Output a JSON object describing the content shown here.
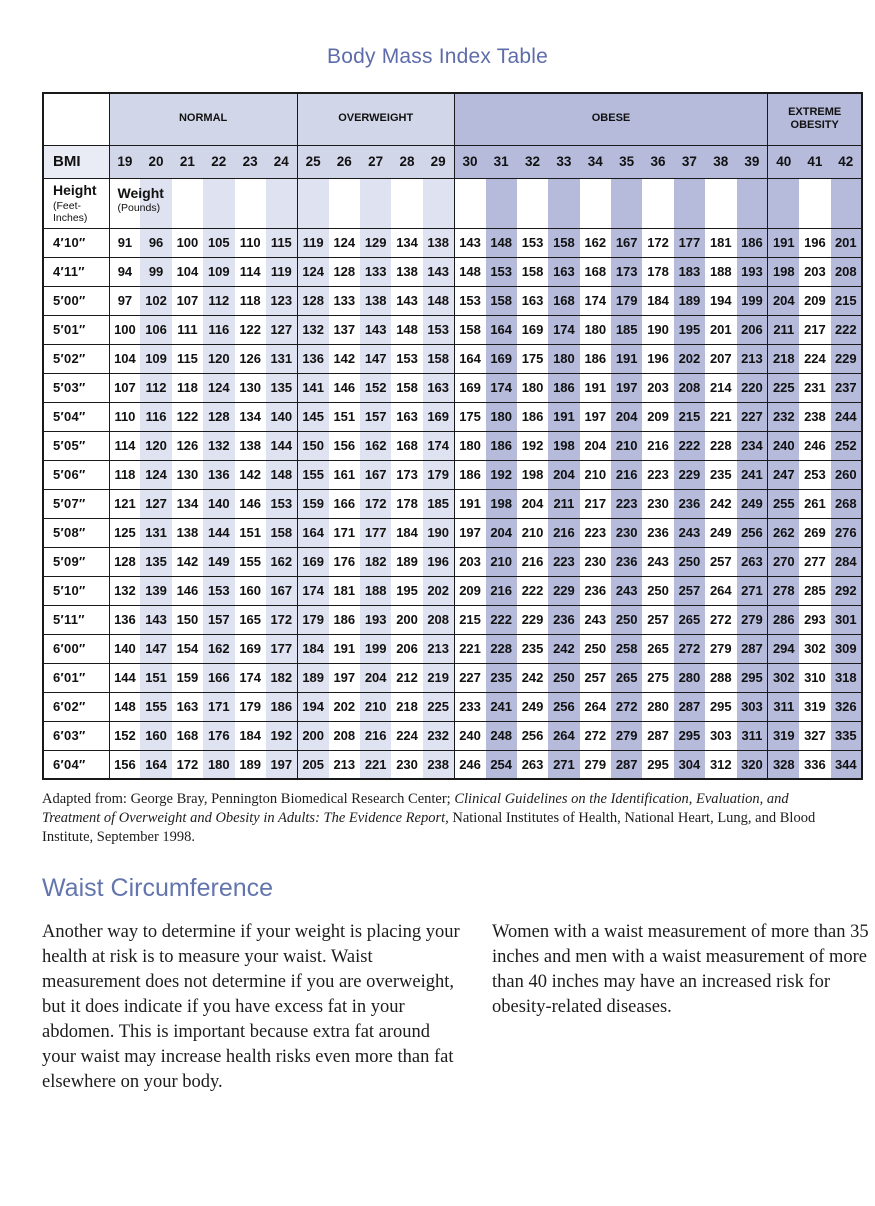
{
  "title": "Body Mass Index Table",
  "table": {
    "categories": [
      {
        "label": "NORMAL",
        "span": 6,
        "shade": "light"
      },
      {
        "label": "OVERWEIGHT",
        "span": 5,
        "shade": "light"
      },
      {
        "label": "OBESE",
        "span": 10,
        "shade": "medium"
      },
      {
        "label": "EXTREME OBESITY",
        "span": 3,
        "shade": "medium"
      }
    ],
    "bmi_label": "BMI",
    "bmi_values": [
      19,
      20,
      21,
      22,
      23,
      24,
      25,
      26,
      27,
      28,
      29,
      30,
      31,
      32,
      33,
      34,
      35,
      36,
      37,
      38,
      39,
      40,
      41,
      42
    ],
    "striped_bmi_columns": [
      20,
      22,
      24,
      25,
      27,
      29,
      31,
      33,
      35,
      37,
      39,
      40,
      42
    ],
    "height_label": "Height",
    "height_unit": "(Feet-Inches)",
    "weight_label": "Weight",
    "weight_unit": "(Pounds)",
    "rows": [
      {
        "height": "4′10″",
        "weights": [
          91,
          96,
          100,
          105,
          110,
          115,
          119,
          124,
          129,
          134,
          138,
          143,
          148,
          153,
          158,
          162,
          167,
          172,
          177,
          181,
          186,
          191,
          196,
          201
        ]
      },
      {
        "height": "4′11″",
        "weights": [
          94,
          99,
          104,
          109,
          114,
          119,
          124,
          128,
          133,
          138,
          143,
          148,
          153,
          158,
          163,
          168,
          173,
          178,
          183,
          188,
          193,
          198,
          203,
          208
        ]
      },
      {
        "height": "5′00″",
        "weights": [
          97,
          102,
          107,
          112,
          118,
          123,
          128,
          133,
          138,
          143,
          148,
          153,
          158,
          163,
          168,
          174,
          179,
          184,
          189,
          194,
          199,
          204,
          209,
          215
        ]
      },
      {
        "height": "5′01″",
        "weights": [
          100,
          106,
          111,
          116,
          122,
          127,
          132,
          137,
          143,
          148,
          153,
          158,
          164,
          169,
          174,
          180,
          185,
          190,
          195,
          201,
          206,
          211,
          217,
          222
        ]
      },
      {
        "height": "5′02″",
        "weights": [
          104,
          109,
          115,
          120,
          126,
          131,
          136,
          142,
          147,
          153,
          158,
          164,
          169,
          175,
          180,
          186,
          191,
          196,
          202,
          207,
          213,
          218,
          224,
          229
        ]
      },
      {
        "height": "5′03″",
        "weights": [
          107,
          112,
          118,
          124,
          130,
          135,
          141,
          146,
          152,
          158,
          163,
          169,
          174,
          180,
          186,
          191,
          197,
          203,
          208,
          214,
          220,
          225,
          231,
          237
        ]
      },
      {
        "height": "5′04″",
        "weights": [
          110,
          116,
          122,
          128,
          134,
          140,
          145,
          151,
          157,
          163,
          169,
          175,
          180,
          186,
          191,
          197,
          204,
          209,
          215,
          221,
          227,
          232,
          238,
          244
        ]
      },
      {
        "height": "5′05″",
        "weights": [
          114,
          120,
          126,
          132,
          138,
          144,
          150,
          156,
          162,
          168,
          174,
          180,
          186,
          192,
          198,
          204,
          210,
          216,
          222,
          228,
          234,
          240,
          246,
          252
        ]
      },
      {
        "height": "5′06″",
        "weights": [
          118,
          124,
          130,
          136,
          142,
          148,
          155,
          161,
          167,
          173,
          179,
          186,
          192,
          198,
          204,
          210,
          216,
          223,
          229,
          235,
          241,
          247,
          253,
          260
        ]
      },
      {
        "height": "5′07″",
        "weights": [
          121,
          127,
          134,
          140,
          146,
          153,
          159,
          166,
          172,
          178,
          185,
          191,
          198,
          204,
          211,
          217,
          223,
          230,
          236,
          242,
          249,
          255,
          261,
          268
        ]
      },
      {
        "height": "5′08″",
        "weights": [
          125,
          131,
          138,
          144,
          151,
          158,
          164,
          171,
          177,
          184,
          190,
          197,
          204,
          210,
          216,
          223,
          230,
          236,
          243,
          249,
          256,
          262,
          269,
          276
        ]
      },
      {
        "height": "5′09″",
        "weights": [
          128,
          135,
          142,
          149,
          155,
          162,
          169,
          176,
          182,
          189,
          196,
          203,
          210,
          216,
          223,
          230,
          236,
          243,
          250,
          257,
          263,
          270,
          277,
          284
        ]
      },
      {
        "height": "5′10″",
        "weights": [
          132,
          139,
          146,
          153,
          160,
          167,
          174,
          181,
          188,
          195,
          202,
          209,
          216,
          222,
          229,
          236,
          243,
          250,
          257,
          264,
          271,
          278,
          285,
          292
        ]
      },
      {
        "height": "5′11″",
        "weights": [
          136,
          143,
          150,
          157,
          165,
          172,
          179,
          186,
          193,
          200,
          208,
          215,
          222,
          229,
          236,
          243,
          250,
          257,
          265,
          272,
          279,
          286,
          293,
          301
        ]
      },
      {
        "height": "6′00″",
        "weights": [
          140,
          147,
          154,
          162,
          169,
          177,
          184,
          191,
          199,
          206,
          213,
          221,
          228,
          235,
          242,
          250,
          258,
          265,
          272,
          279,
          287,
          294,
          302,
          309
        ]
      },
      {
        "height": "6′01″",
        "weights": [
          144,
          151,
          159,
          166,
          174,
          182,
          189,
          197,
          204,
          212,
          219,
          227,
          235,
          242,
          250,
          257,
          265,
          275,
          280,
          288,
          295,
          302,
          310,
          318
        ]
      },
      {
        "height": "6′02″",
        "weights": [
          148,
          155,
          163,
          171,
          179,
          186,
          194,
          202,
          210,
          218,
          225,
          233,
          241,
          249,
          256,
          264,
          272,
          280,
          287,
          295,
          303,
          311,
          319,
          326
        ]
      },
      {
        "height": "6′03″",
        "weights": [
          152,
          160,
          168,
          176,
          184,
          192,
          200,
          208,
          216,
          224,
          232,
          240,
          248,
          256,
          264,
          272,
          279,
          287,
          295,
          303,
          311,
          319,
          327,
          335
        ]
      },
      {
        "height": "6′04″",
        "weights": [
          156,
          164,
          172,
          180,
          189,
          197,
          205,
          213,
          221,
          230,
          238,
          246,
          254,
          263,
          271,
          279,
          287,
          295,
          304,
          312,
          320,
          328,
          336,
          344
        ]
      }
    ]
  },
  "source_note": {
    "prefix": "Adapted from: George Bray, Pennington Biomedical Research Center; ",
    "italic": "Clinical Guidelines on the Identification, Evaluation, and Treatment of Overweight and Obesity in Adults: The Evidence Report,",
    "suffix": " National Institutes of Health, National Heart, Lung, and Blood Institute, September 1998."
  },
  "waist_section": {
    "heading": "Waist Circumference",
    "left_paragraph": "Another way to determine if your weight is placing your health at risk is to measure your waist. Waist measurement does not determine if you are overweight, but it does indicate if you have excess fat in your abdomen. This is important because extra fat around your waist may increase health risks even more than fat elsewhere on your body.",
    "right_paragraph": "Women with a waist measurement of more than 35 inches and men with a waist measurement of more than 40 inches may have an increased risk for obesity-related diseases."
  },
  "colors": {
    "title": "#5e6da9",
    "heading": "#6375ad",
    "light_band": "#d2d6e9",
    "medium_band": "#b6bbdc",
    "light_stripe": "#dfe2f0",
    "bmi_cell": "#e9ebf5",
    "border": "#1a1a1a",
    "text": "#1c1c1c"
  }
}
